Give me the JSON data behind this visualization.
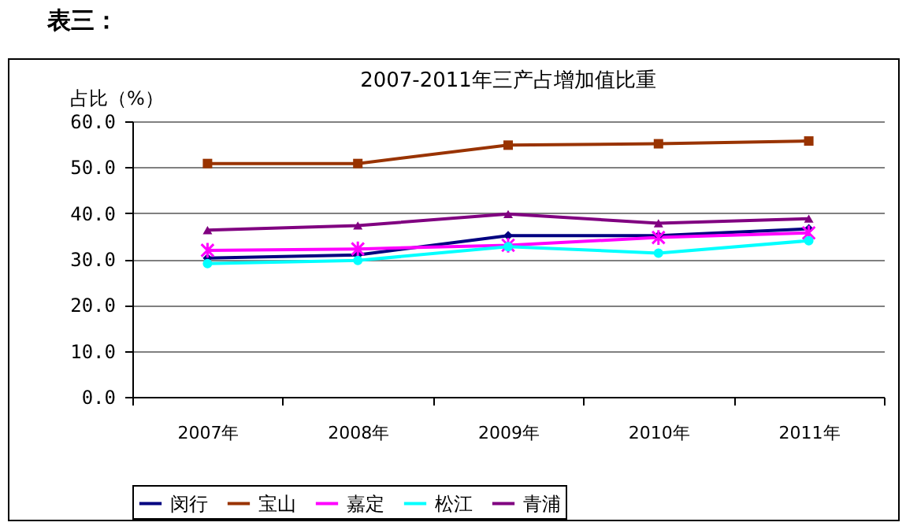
{
  "chart_data": {
    "type": "line",
    "title": "2007-2011年三产占增加值比重",
    "ylabel": "占比（%）",
    "annotations": [
      "表三："
    ],
    "categories": [
      "2007年",
      "2008年",
      "2009年",
      "2010年",
      "2011年"
    ],
    "series": [
      {
        "name": "闵行",
        "color": "#000080",
        "marker": "diamond",
        "values": [
          30.2,
          30.9,
          35.1,
          35.1,
          36.6
        ]
      },
      {
        "name": "宝山",
        "color": "#993300",
        "marker": "square",
        "values": [
          50.8,
          50.8,
          54.8,
          55.1,
          55.7
        ]
      },
      {
        "name": "嘉定",
        "color": "#ff00ff",
        "marker": "cross",
        "values": [
          31.9,
          32.2,
          33.0,
          34.7,
          35.7
        ]
      },
      {
        "name": "松江",
        "color": "#00ffff",
        "marker": "circle",
        "values": [
          29.0,
          29.7,
          32.7,
          31.3,
          34.0
        ]
      },
      {
        "name": "青浦",
        "color": "#800080",
        "marker": "triangle",
        "values": [
          36.3,
          37.3,
          39.8,
          37.8,
          38.8
        ]
      }
    ],
    "ylim": [
      0,
      60
    ],
    "yticks": [
      {
        "value": 0,
        "label": "0.0"
      },
      {
        "value": 10,
        "label": "10.0"
      },
      {
        "value": 20,
        "label": "20.0"
      },
      {
        "value": 30,
        "label": "30.0"
      },
      {
        "value": 40,
        "label": "40.0"
      },
      {
        "value": 50,
        "label": "50.0"
      },
      {
        "value": 60,
        "label": "60.0"
      }
    ],
    "grid": "y",
    "legend": "bottom",
    "line_style": "solid"
  }
}
